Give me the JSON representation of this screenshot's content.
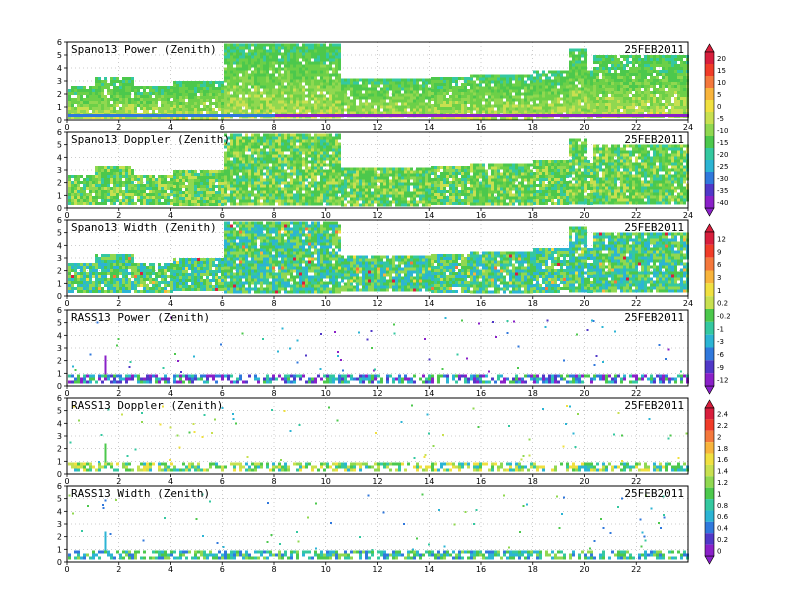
{
  "chart_data": [
    {
      "type": "heatmap",
      "title": "Spano13 Power (Zenith)",
      "date_label": "25FEB2011",
      "x_ticks": [
        "0",
        "2",
        "4",
        "6",
        "8",
        "10",
        "12",
        "14",
        "16",
        "18",
        "20",
        "22",
        "24"
      ],
      "y_ticks": [
        "0",
        "1",
        "2",
        "3",
        "4",
        "5",
        "6"
      ],
      "xlim": [
        0,
        24
      ],
      "ylim": [
        0,
        6
      ],
      "grid": true,
      "quantity": "power",
      "coverage": {
        "min_height": 0.2,
        "top_profile": [
          [
            0,
            2.6
          ],
          [
            1,
            2.6
          ],
          [
            1,
            3.3
          ],
          [
            2.5,
            3.3
          ],
          [
            2.5,
            2.6
          ],
          [
            4,
            2.6
          ],
          [
            4,
            3.0
          ],
          [
            5.5,
            3.0
          ],
          [
            6,
            4.3
          ],
          [
            6,
            5.9
          ],
          [
            10.5,
            5.9
          ],
          [
            10.5,
            3.2
          ],
          [
            12,
            3.2
          ],
          [
            14,
            3.3
          ],
          [
            15.5,
            3.5
          ],
          [
            16,
            3.5
          ],
          [
            18,
            3.8
          ],
          [
            19.3,
            4.2
          ],
          [
            19.3,
            5.5
          ],
          [
            20,
            5.5
          ],
          [
            20,
            3.8
          ],
          [
            20.3,
            3.8
          ],
          [
            20.3,
            5.0
          ],
          [
            24,
            5.0
          ]
        ]
      },
      "series": []
    },
    {
      "type": "heatmap",
      "title": "Spano13 Doppler (Zenith)",
      "date_label": "25FEB2011",
      "x_ticks": [
        "0",
        "2",
        "4",
        "6",
        "8",
        "10",
        "12",
        "14",
        "16",
        "18",
        "20",
        "22",
        "24"
      ],
      "y_ticks": [
        "0",
        "1",
        "2",
        "3",
        "4",
        "5",
        "6"
      ],
      "xlim": [
        0,
        24
      ],
      "ylim": [
        0,
        6
      ],
      "grid": true,
      "quantity": "doppler",
      "coverage": {
        "min_height": 0.3,
        "top_profile": [
          [
            0,
            2.6
          ],
          [
            1,
            2.6
          ],
          [
            1,
            3.3
          ],
          [
            2.5,
            3.3
          ],
          [
            2.5,
            2.6
          ],
          [
            4,
            2.6
          ],
          [
            4,
            3.0
          ],
          [
            5.5,
            3.0
          ],
          [
            6,
            4.3
          ],
          [
            6,
            5.9
          ],
          [
            10.5,
            5.9
          ],
          [
            10.5,
            3.2
          ],
          [
            12,
            3.2
          ],
          [
            14,
            3.3
          ],
          [
            15.5,
            3.5
          ],
          [
            16,
            3.5
          ],
          [
            18,
            3.8
          ],
          [
            19.3,
            4.2
          ],
          [
            19.3,
            5.5
          ],
          [
            20,
            5.5
          ],
          [
            20,
            3.8
          ],
          [
            20.3,
            3.8
          ],
          [
            20.3,
            5.0
          ],
          [
            24,
            5.0
          ]
        ]
      },
      "series": []
    },
    {
      "type": "heatmap",
      "title": "Spano13 Width (Zenith)",
      "date_label": "25FEB2011",
      "x_ticks": [
        "0",
        "2",
        "4",
        "6",
        "8",
        "10",
        "12",
        "14",
        "16",
        "18",
        "20",
        "22",
        "24"
      ],
      "y_ticks": [
        "0",
        "1",
        "2",
        "3",
        "4",
        "5",
        "6"
      ],
      "xlim": [
        0,
        24
      ],
      "ylim": [
        0,
        6
      ],
      "grid": true,
      "quantity": "width",
      "coverage": {
        "min_height": 0.4,
        "top_profile": [
          [
            0,
            2.6
          ],
          [
            1,
            2.6
          ],
          [
            1,
            3.3
          ],
          [
            2.5,
            3.3
          ],
          [
            2.5,
            2.6
          ],
          [
            4,
            2.6
          ],
          [
            4,
            3.0
          ],
          [
            5.5,
            3.0
          ],
          [
            6,
            4.3
          ],
          [
            6,
            5.9
          ],
          [
            10.5,
            5.9
          ],
          [
            10.5,
            3.2
          ],
          [
            12,
            3.2
          ],
          [
            14,
            3.3
          ],
          [
            15.5,
            3.5
          ],
          [
            16,
            3.5
          ],
          [
            18,
            3.8
          ],
          [
            19.3,
            4.2
          ],
          [
            19.3,
            5.5
          ],
          [
            20,
            5.5
          ],
          [
            20,
            3.8
          ],
          [
            20.3,
            3.8
          ],
          [
            20.3,
            5.0
          ],
          [
            24,
            5.0
          ]
        ]
      },
      "series": []
    },
    {
      "type": "heatmap",
      "title": "RASS13 Power (Zenith)",
      "date_label": "25FEB2011",
      "x_ticks": [
        "0",
        "2",
        "4",
        "6",
        "8",
        "10",
        "12",
        "14",
        "16",
        "18",
        "20",
        "22"
      ],
      "y_ticks": [
        "0",
        "1",
        "2",
        "3",
        "4",
        "5",
        "6"
      ],
      "xlim": [
        0,
        24
      ],
      "ylim": [
        0,
        6
      ],
      "grid": true,
      "quantity": "rass_power",
      "coverage": {
        "min_height": 0.4,
        "top_profile": [
          [
            0,
            0.9
          ],
          [
            24,
            0.9
          ]
        ]
      },
      "series": []
    },
    {
      "type": "heatmap",
      "title": "RASS13 Doppler (Zenith)",
      "date_label": "25FEB2011",
      "x_ticks": [
        "0",
        "2",
        "4",
        "6",
        "8",
        "10",
        "12",
        "14",
        "16",
        "18",
        "20",
        "22"
      ],
      "y_ticks": [
        "0",
        "1",
        "2",
        "3",
        "4",
        "5",
        "6"
      ],
      "xlim": [
        0,
        24
      ],
      "ylim": [
        0,
        6
      ],
      "grid": true,
      "quantity": "rass_doppler",
      "coverage": {
        "min_height": 0.4,
        "top_profile": [
          [
            0,
            0.9
          ],
          [
            24,
            0.9
          ]
        ]
      },
      "series": []
    },
    {
      "type": "heatmap",
      "title": "RASS13 Width (Zenith)",
      "date_label": "25FEB2011",
      "x_ticks": [
        "0",
        "2",
        "4",
        "6",
        "8",
        "10",
        "12",
        "14",
        "16",
        "18",
        "20",
        "22"
      ],
      "y_ticks": [
        "0",
        "1",
        "2",
        "3",
        "4",
        "5",
        "6"
      ],
      "xlim": [
        0,
        24
      ],
      "ylim": [
        0,
        6
      ],
      "grid": true,
      "quantity": "rass_width",
      "coverage": {
        "min_height": 0.4,
        "top_profile": [
          [
            0,
            0.9
          ],
          [
            24,
            0.9
          ]
        ]
      },
      "series": []
    }
  ],
  "colorbars": [
    {
      "labels": [
        "20",
        "15",
        "10",
        "5",
        "0",
        "-5",
        "-10",
        "-15",
        "-20",
        "-25",
        "-30",
        "-35",
        "-40"
      ],
      "colors": [
        "#d81e3c",
        "#f03c28",
        "#f4783c",
        "#f8b43c",
        "#f0e040",
        "#c8e050",
        "#90d850",
        "#4cc84c",
        "#34c8a0",
        "#2cb4d4",
        "#3078dc",
        "#5038c8",
        "#8a20c8"
      ]
    },
    {
      "labels": [
        "12",
        "9",
        "6",
        "3",
        "1",
        "0.2",
        "-0.2",
        "-1",
        "-3",
        "-6",
        "-9",
        "-12"
      ],
      "colors": [
        "#d81e3c",
        "#f03c28",
        "#f4783c",
        "#f8b43c",
        "#f0e040",
        "#c8e050",
        "#4cc84c",
        "#34c8a0",
        "#2cb4d4",
        "#3078dc",
        "#5038c8",
        "#8a20c8"
      ]
    },
    {
      "labels": [
        "2.4",
        "2.2",
        "2",
        "1.8",
        "1.6",
        "1.4",
        "1.2",
        "1",
        "0.8",
        "0.6",
        "0.4",
        "0.2",
        "0"
      ],
      "colors": [
        "#d81e3c",
        "#f03c28",
        "#f4783c",
        "#f8b43c",
        "#f0e040",
        "#c8e050",
        "#90d850",
        "#4cc84c",
        "#34c8a0",
        "#2cb4d4",
        "#3078dc",
        "#5038c8",
        "#8a20c8"
      ]
    }
  ]
}
